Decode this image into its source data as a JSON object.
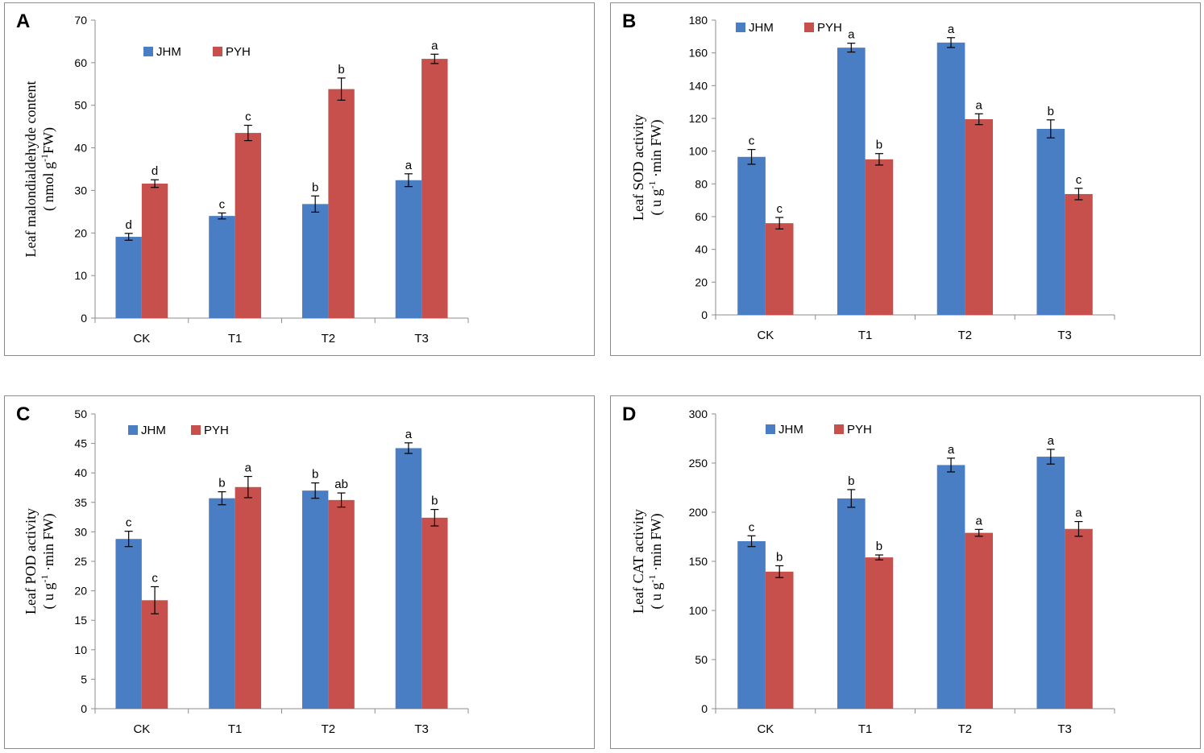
{
  "colors": {
    "jhm": "#4a7ec4",
    "pyh": "#c8504c",
    "axis": "#8c8c8c"
  },
  "chart_data": [
    {
      "panel": "A",
      "type": "bar",
      "categories": [
        "CK",
        "T1",
        "T2",
        "T3"
      ],
      "series": [
        {
          "name": "JHM",
          "values": [
            19.1,
            24.0,
            26.8,
            32.4
          ],
          "errors": [
            0.8,
            0.7,
            1.9,
            1.5
          ],
          "letters": [
            "d",
            "c",
            "b",
            "a"
          ]
        },
        {
          "name": "PYH",
          "values": [
            31.6,
            43.5,
            53.8,
            60.9
          ],
          "errors": [
            0.9,
            1.8,
            2.6,
            1.1
          ],
          "letters": [
            "d",
            "c",
            "b",
            "a"
          ]
        }
      ],
      "ylabel_line1": "Leaf malondialdehyde content",
      "ylabel_line2_pre": "( nmol g",
      "ylabel_sup": "-1",
      "ylabel_line2_post": "FW)",
      "ylim": [
        0,
        70
      ],
      "yticks": [
        "0",
        "10",
        "20",
        "30",
        "40",
        "50",
        "60",
        "70"
      ],
      "legend": [
        "JHM",
        "PYH"
      ]
    },
    {
      "panel": "B",
      "type": "bar",
      "categories": [
        "CK",
        "T1",
        "T2",
        "T3"
      ],
      "series": [
        {
          "name": "JHM",
          "values": [
            96.5,
            163.2,
            166.3,
            113.6
          ],
          "errors": [
            4.5,
            2.7,
            3.0,
            5.5
          ],
          "letters": [
            "c",
            "a",
            "a",
            "b"
          ]
        },
        {
          "name": "PYH",
          "values": [
            56.0,
            95.0,
            119.5,
            73.8
          ],
          "errors": [
            3.5,
            3.5,
            3.3,
            3.5
          ],
          "letters": [
            "c",
            "b",
            "a",
            "c"
          ]
        }
      ],
      "ylabel_line1": "Leaf  SOD activity",
      "ylabel_line2_pre": "( u g",
      "ylabel_sup": "-1",
      "ylabel_line2_post": " ·min FW)",
      "ylim": [
        0,
        180
      ],
      "yticks": [
        "0",
        "20",
        "40",
        "60",
        "80",
        "100",
        "120",
        "140",
        "160",
        "180"
      ],
      "legend": [
        "JHM",
        "PYH"
      ]
    },
    {
      "panel": "C",
      "type": "bar",
      "categories": [
        "CK",
        "T1",
        "T2",
        "T3"
      ],
      "series": [
        {
          "name": "JHM",
          "values": [
            28.8,
            35.7,
            37.0,
            44.2
          ],
          "errors": [
            1.3,
            1.1,
            1.3,
            0.9
          ],
          "letters": [
            "c",
            "b",
            "b",
            "a"
          ]
        },
        {
          "name": "PYH",
          "values": [
            18.4,
            37.6,
            35.4,
            32.4
          ],
          "errors": [
            2.3,
            1.8,
            1.2,
            1.4
          ],
          "letters": [
            "c",
            "a",
            "ab",
            "b"
          ]
        }
      ],
      "ylabel_line1": "Leaf  POD activity",
      "ylabel_line2_pre": "( u g",
      "ylabel_sup": "-1",
      "ylabel_line2_post": " ·min FW)",
      "ylim": [
        0,
        50
      ],
      "yticks": [
        "0",
        "5",
        "10",
        "15",
        "20",
        "25",
        "30",
        "35",
        "40",
        "45",
        "50"
      ],
      "legend": [
        "JHM",
        "PYH"
      ]
    },
    {
      "panel": "D",
      "type": "bar",
      "categories": [
        "CK",
        "T1",
        "T2",
        "T3"
      ],
      "series": [
        {
          "name": "JHM",
          "values": [
            170.5,
            214.0,
            248.0,
            256.5
          ],
          "errors": [
            5.5,
            9.0,
            7.0,
            7.5
          ],
          "letters": [
            "c",
            "b",
            "a",
            "a"
          ]
        },
        {
          "name": "PYH",
          "values": [
            139.5,
            154.0,
            179.0,
            183.0
          ],
          "errors": [
            6.0,
            2.5,
            3.5,
            7.5
          ],
          "letters": [
            "b",
            "b",
            "a",
            "a"
          ]
        }
      ],
      "ylabel_line1": "Leaf CAT activity",
      "ylabel_line2_pre": "( u g",
      "ylabel_sup": "-1",
      "ylabel_line2_post": " ·min FW)",
      "ylim": [
        0,
        300
      ],
      "yticks": [
        "0",
        "50",
        "100",
        "150",
        "200",
        "250",
        "300"
      ],
      "legend": [
        "JHM",
        "PYH"
      ]
    }
  ]
}
